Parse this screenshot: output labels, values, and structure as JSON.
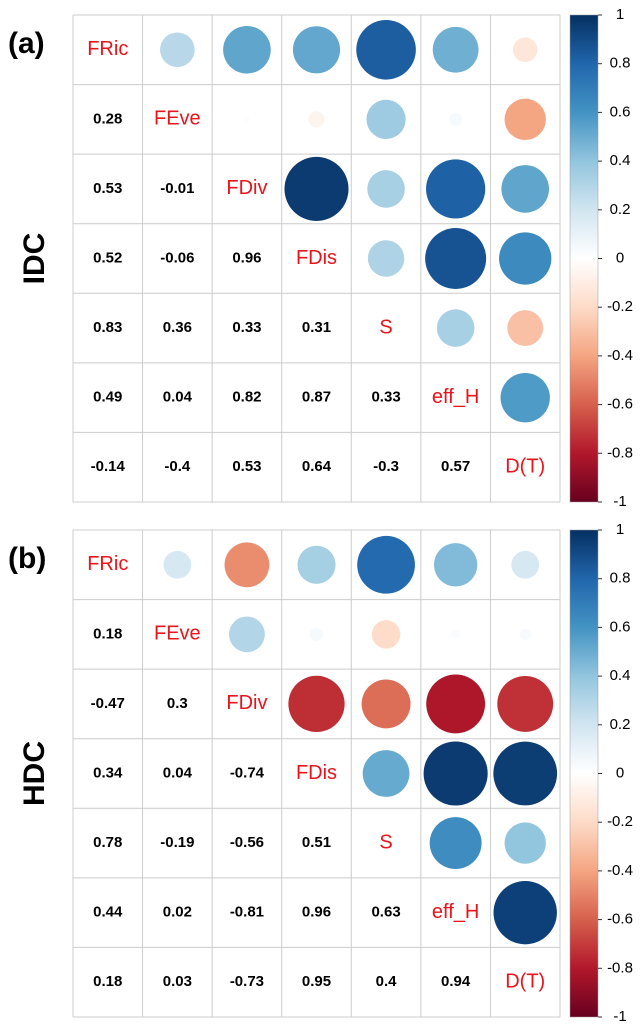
{
  "chart_data": [
    {
      "type": "corrplot",
      "panel_label": "(a)",
      "ylabel": "IDC",
      "variables": [
        "FRic",
        "FEve",
        "FDiv",
        "FDis",
        "S",
        "eff_H",
        "D(T)"
      ],
      "lower": [
        [
          0.28
        ],
        [
          0.53,
          -0.01
        ],
        [
          0.52,
          -0.06,
          0.96
        ],
        [
          0.83,
          0.36,
          0.33,
          0.31
        ],
        [
          0.49,
          0.04,
          0.82,
          0.87,
          0.33
        ],
        [
          -0.14,
          -0.4,
          0.53,
          0.64,
          -0.3,
          0.57
        ]
      ],
      "clim": [
        -1,
        1
      ],
      "cticks": [
        1,
        0.8,
        0.6,
        0.4,
        0.2,
        0,
        -0.2,
        -0.4,
        -0.6,
        -0.8,
        -1
      ],
      "colormap": [
        "#67001F",
        "#B2182B",
        "#D6604D",
        "#F4A582",
        "#FDDBC7",
        "#FFFFFF",
        "#D1E5F0",
        "#92C5DE",
        "#4393C3",
        "#2166AC",
        "#053061"
      ],
      "label_color": "#e8141c"
    },
    {
      "type": "corrplot",
      "panel_label": "(b)",
      "ylabel": "HDC",
      "variables": [
        "FRic",
        "FEve",
        "FDiv",
        "FDis",
        "S",
        "eff_H",
        "D(T)"
      ],
      "lower": [
        [
          0.18
        ],
        [
          -0.47,
          0.3
        ],
        [
          0.34,
          0.04,
          -0.74
        ],
        [
          0.78,
          -0.19,
          -0.56,
          0.51
        ],
        [
          0.44,
          0.02,
          -0.81,
          0.96,
          0.63
        ],
        [
          0.18,
          0.03,
          -0.73,
          0.95,
          0.4,
          0.94
        ]
      ],
      "clim": [
        -1,
        1
      ],
      "cticks": [
        1,
        0.8,
        0.6,
        0.4,
        0.2,
        0,
        -0.2,
        -0.4,
        -0.6,
        -0.8,
        -1
      ],
      "colormap": [
        "#67001F",
        "#B2182B",
        "#D6604D",
        "#F4A582",
        "#FDDBC7",
        "#FFFFFF",
        "#D1E5F0",
        "#92C5DE",
        "#4393C3",
        "#2166AC",
        "#053061"
      ],
      "label_color": "#e8141c"
    }
  ]
}
